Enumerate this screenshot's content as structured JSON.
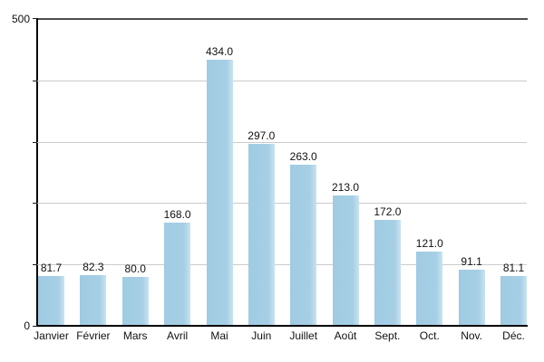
{
  "chart": {
    "background": "#ffffff",
    "y_axis": {
      "top_label": "500",
      "bottom_label": "0"
    },
    "colors": {
      "bar_fill": "#a5cee5",
      "bar_edge_light": "#c9e3f1",
      "gridline": "#cbcbcb",
      "top_boundary_line": "#4d4d4d",
      "axis": "#000000",
      "text": "#111111"
    }
  },
  "chart_data": {
    "type": "bar",
    "categories": [
      "Janvier",
      "Février",
      "Mars",
      "Avril",
      "Mai",
      "Juin",
      "Juillet",
      "Août",
      "Sept.",
      "Oct.",
      "Nov.",
      "Déc."
    ],
    "values": [
      81.7,
      82.3,
      80.0,
      168.0,
      434.0,
      297.0,
      263.0,
      213.0,
      172.0,
      121.0,
      91.1,
      81.1
    ],
    "value_labels": [
      "81.7",
      "82.3",
      "80.0",
      "168.0",
      "434.0",
      "297.0",
      "263.0",
      "213.0",
      "172.0",
      "121.0",
      "91.1",
      "81.1"
    ],
    "title": "",
    "xlabel": "",
    "ylabel": "",
    "ylim": [
      0,
      500
    ],
    "ytick_step": 100,
    "ytick_labels_shown": [
      "500",
      "0"
    ],
    "grid": "horizontal",
    "legend": "none",
    "bar_color": "#a5cee5"
  }
}
